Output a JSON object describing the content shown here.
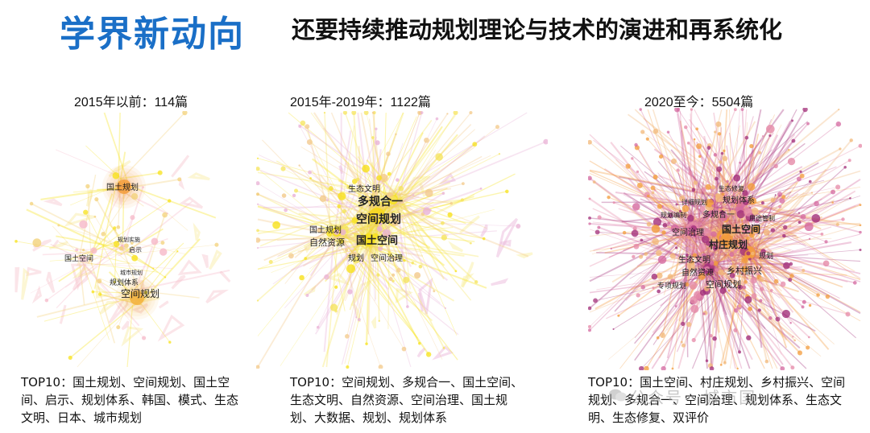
{
  "header": {
    "title": "学界新动向",
    "subtitle": "还要持续推动规划理论与技术的演进和再系统化"
  },
  "panels": [
    {
      "label": "2015年以前：114篇",
      "keywords": [
        "国土规划",
        "规划实施",
        "启示",
        "国土空间",
        "城市规划",
        "规划体系",
        "空间规划"
      ],
      "top10": "TOP10：国土规划、空间规划、国土空间、启示、规划体系、韩国、模式、生态文明、日本、城市规划"
    },
    {
      "label": "2015年-2019年：1122篇",
      "keywords": [
        "生态文明",
        "多规合一",
        "空间规划",
        "国土规划",
        "自然资源",
        "国土空间",
        "规划",
        "空间治理"
      ],
      "top10": "TOP10：空间规划、多规合一、国土空间、生态文明、自然资源、空间治理、国土规划、大数据、规划、规划体系"
    },
    {
      "label": "2020至今：5504篇",
      "keywords": [
        "生态修复",
        "详细规划",
        "规划体系",
        "规划编制",
        "多规合一",
        "用途管制",
        "空间治理",
        "国土空间",
        "村庄规划",
        "规划",
        "生态文明",
        "自然资源",
        "乡村振兴",
        "专项规划",
        "空间规划"
      ],
      "top10": "TOP10：国土空间、村庄规划、乡村振兴、空间规划、多规合一、空间治理、规划体系、生态文明、生态修复、双评价"
    }
  ],
  "watermark": "公众号 · 城市国",
  "colors": {
    "title_blue": "#1a6fc7",
    "yellow": "#f7e11a",
    "pink": "#e58aa8",
    "purple": "#a3307a",
    "orange": "#f39c3c"
  }
}
